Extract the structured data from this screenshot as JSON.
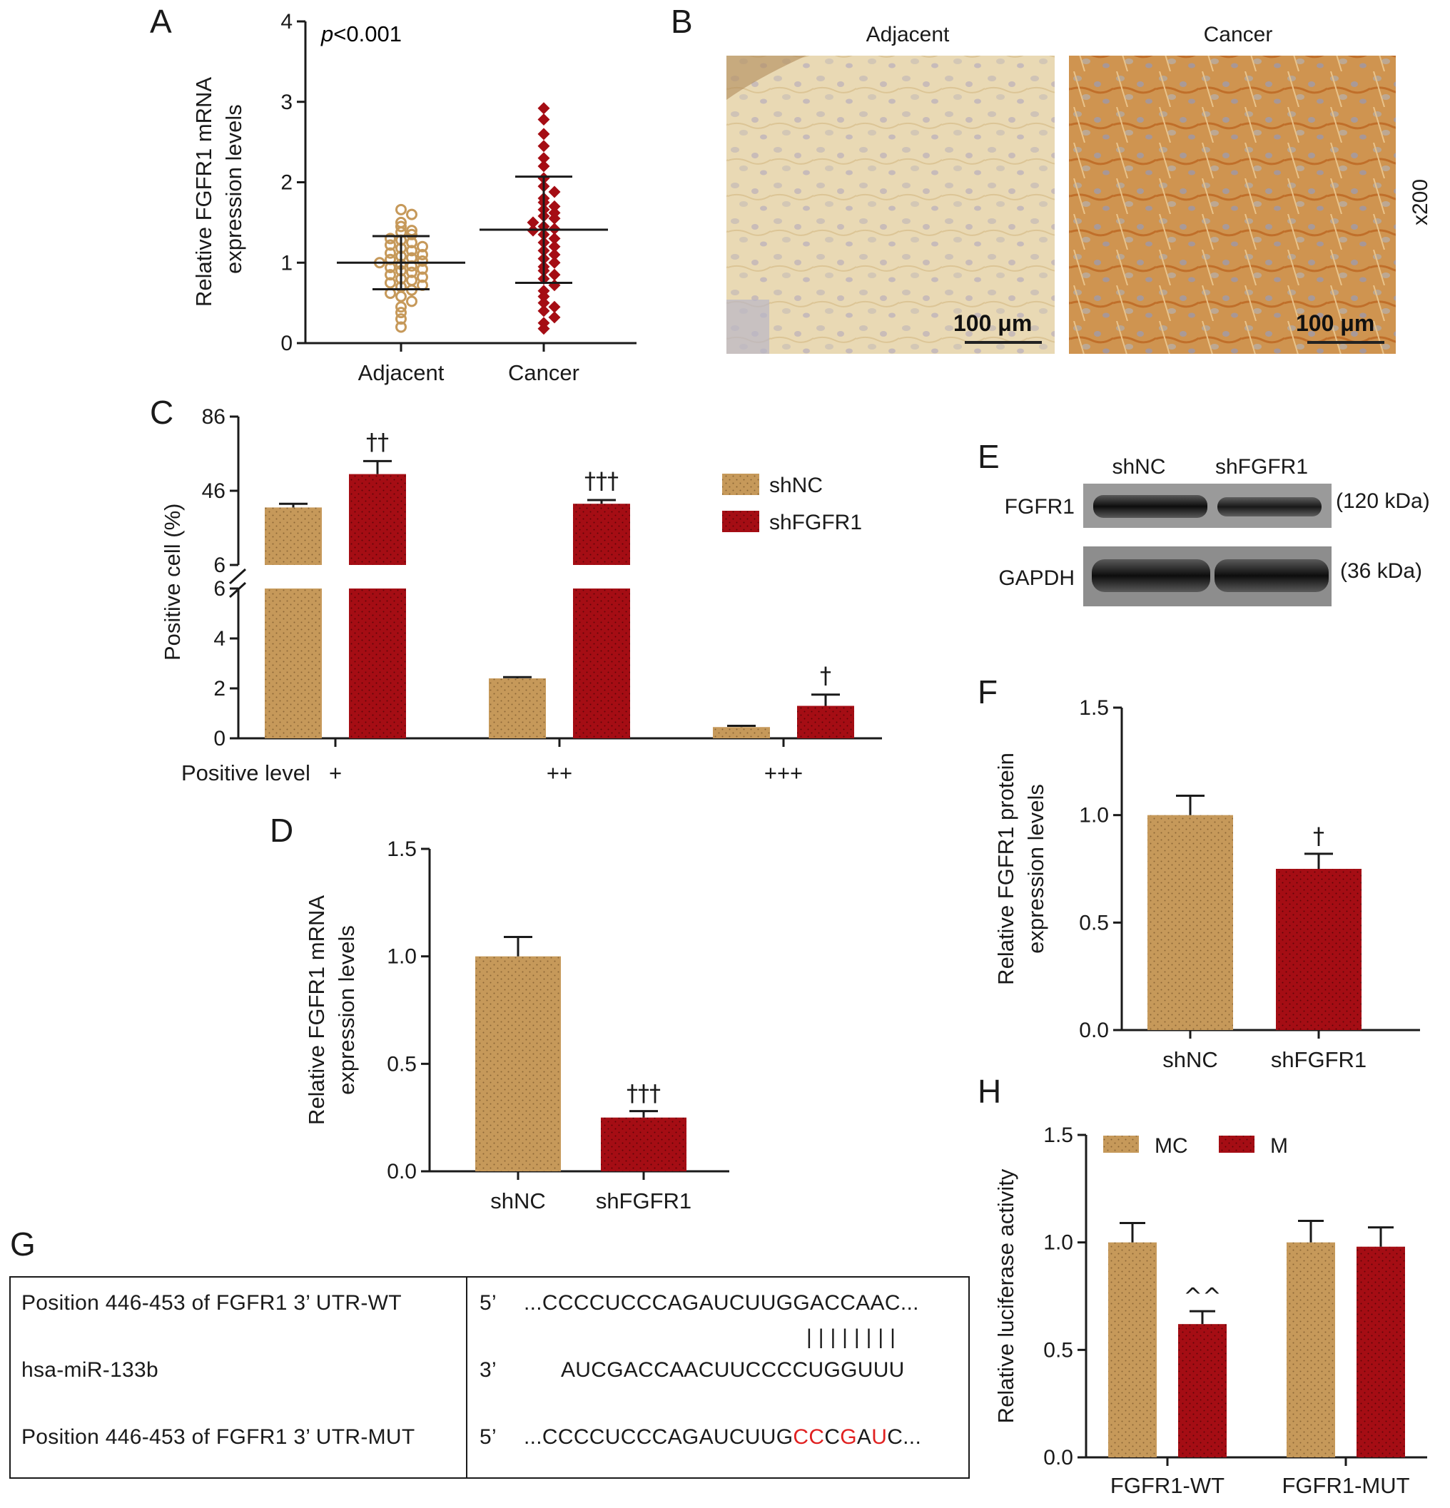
{
  "colors": {
    "tan": "#c6995a",
    "red": "#a50d14",
    "ink": "#1a1a1a",
    "mut_red": "#e02020"
  },
  "chart_data": [
    {
      "panel": "A",
      "type": "scatter",
      "ylabel": "Relative FGFR1 mRNA expression levels",
      "ylim": [
        0,
        4
      ],
      "yticks": [
        "0",
        "1",
        "2",
        "3",
        "4"
      ],
      "categories": [
        "Adjacent",
        "Cancer"
      ],
      "annotation": "p<0.001",
      "series": [
        {
          "name": "Adjacent",
          "mean": 1.0,
          "sd": 0.33,
          "values": [
            1.66,
            1.6,
            1.5,
            1.45,
            1.4,
            1.38,
            1.35,
            1.3,
            1.28,
            1.25,
            1.22,
            1.2,
            1.18,
            1.15,
            1.12,
            1.1,
            1.08,
            1.06,
            1.04,
            1.02,
            1.0,
            0.98,
            0.96,
            0.94,
            0.92,
            0.9,
            0.88,
            0.85,
            0.82,
            0.8,
            0.78,
            0.75,
            0.72,
            0.7,
            0.66,
            0.62,
            0.58,
            0.52,
            0.45,
            0.38,
            0.3,
            0.2
          ]
        },
        {
          "name": "Cancer",
          "mean": 1.41,
          "sd": 0.66,
          "values": [
            2.92,
            2.78,
            2.6,
            2.45,
            2.3,
            2.2,
            2.05,
            1.95,
            1.88,
            1.8,
            1.75,
            1.7,
            1.66,
            1.62,
            1.58,
            1.55,
            1.5,
            1.45,
            1.42,
            1.4,
            1.35,
            1.3,
            1.25,
            1.2,
            1.15,
            1.1,
            1.05,
            1.0,
            0.95,
            0.9,
            0.85,
            0.8,
            0.72,
            0.65,
            0.58,
            0.5,
            0.45,
            0.4,
            0.32,
            0.25,
            0.18
          ]
        }
      ]
    },
    {
      "panel": "C",
      "type": "bar",
      "ylabel": "Positive cell (%)",
      "xlabel": "Positive level",
      "categories": [
        "+",
        "++",
        "+++"
      ],
      "yticks_lower": [
        "0",
        "2",
        "4",
        "6"
      ],
      "yticks_upper": [
        "6",
        "46",
        "86"
      ],
      "broken_axis": true,
      "series": [
        {
          "name": "shNC",
          "values": [
            37,
            2.4,
            0.45
          ],
          "errors": [
            2,
            0.05,
            0.05
          ]
        },
        {
          "name": "shFGFR1",
          "values": [
            55,
            39,
            1.3
          ],
          "errors": [
            7,
            2,
            0.45
          ]
        }
      ],
      "significance": [
        "††",
        "†††",
        "†"
      ]
    },
    {
      "panel": "D",
      "type": "bar",
      "ylabel": "Relative FGFR1 mRNA expression levels",
      "ylim": [
        0,
        1.5
      ],
      "yticks": [
        "0.0",
        "0.5",
        "1.0",
        "1.5"
      ],
      "categories": [
        "shNC",
        "shFGFR1"
      ],
      "values": [
        1.0,
        0.25
      ],
      "errors": [
        0.09,
        0.03
      ],
      "significance": [
        "",
        "†††"
      ]
    },
    {
      "panel": "F",
      "type": "bar",
      "ylabel": "Relative FGFR1 protein expression levels",
      "ylim": [
        0,
        1.5
      ],
      "yticks": [
        "0.0",
        "0.5",
        "1.0",
        "1.5"
      ],
      "categories": [
        "shNC",
        "shFGFR1"
      ],
      "values": [
        1.0,
        0.75
      ],
      "errors": [
        0.09,
        0.07
      ],
      "significance": [
        "",
        "†"
      ]
    },
    {
      "panel": "H",
      "type": "bar",
      "ylabel": "Relative luciferase activity",
      "ylim": [
        0,
        1.5
      ],
      "yticks": [
        "0.0",
        "0.5",
        "1.0",
        "1.5"
      ],
      "categories": [
        "FGFR1-WT",
        "FGFR1-MUT"
      ],
      "series": [
        {
          "name": "MC",
          "values": [
            1.0,
            1.0
          ],
          "errors": [
            0.09,
            0.1
          ]
        },
        {
          "name": "M",
          "values": [
            0.62,
            0.98
          ],
          "errors": [
            0.06,
            0.09
          ]
        }
      ],
      "significance": [
        "^^",
        ""
      ]
    }
  ],
  "panels": {
    "A": {
      "letter": "A"
    },
    "B": {
      "letter": "B",
      "left_title": "Adjacent",
      "right_title": "Cancer",
      "scale_bar": "100 μm",
      "magnification": "x200"
    },
    "C": {
      "letter": "C"
    },
    "D": {
      "letter": "D"
    },
    "E": {
      "letter": "E",
      "lanes": [
        "shNC",
        "shFGFR1"
      ],
      "rows": [
        {
          "label": "FGFR1",
          "size": "(120 kDa)"
        },
        {
          "label": "GAPDH",
          "size": "(36 kDa)"
        }
      ]
    },
    "F": {
      "letter": "F"
    },
    "G": {
      "letter": "G",
      "rows": [
        {
          "label": "Position 446-453 of FGFR1 3’ UTR-WT",
          "end": "5’",
          "seq": [
            {
              "t": "...CCCCUCCCAGAUCUUGGACCAAC...",
              "red": false
            }
          ]
        },
        {
          "label": "hsa-miR-133b",
          "end": "3’",
          "seq": [
            {
              "t": "AUCGACCAACUUCCCCUGGUUU",
              "red": false
            }
          ]
        },
        {
          "label": "Position 446-453 of FGFR1 3’ UTR-MUT",
          "end": "5’",
          "seq": [
            {
              "t": "...CCCCUCCCAGAUCUUG",
              "red": false
            },
            {
              "t": "CC",
              "red": true
            },
            {
              "t": "C",
              "red": false
            },
            {
              "t": "G",
              "red": true
            },
            {
              "t": "A",
              "red": false
            },
            {
              "t": "U",
              "red": true
            },
            {
              "t": "C...",
              "red": false
            }
          ]
        }
      ],
      "pairing": "| | | | | | | |"
    },
    "H": {
      "letter": "H"
    }
  }
}
